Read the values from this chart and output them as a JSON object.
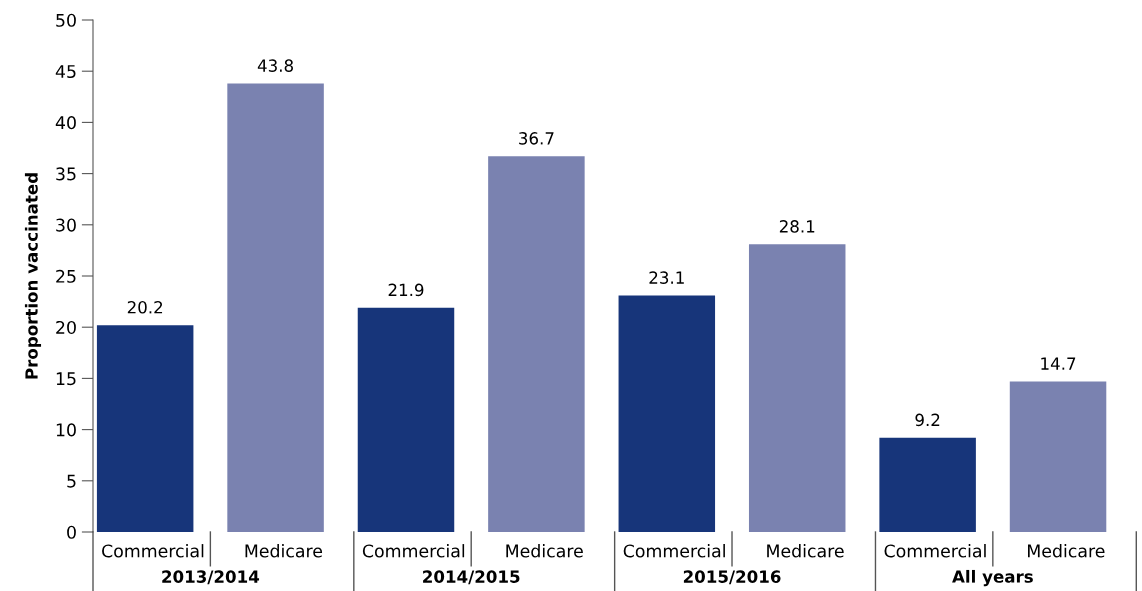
{
  "chart_data": {
    "type": "bar",
    "ylabel": "Proportion vaccinated",
    "categories": [
      "2013/2014",
      "2014/2015",
      "2015/2016",
      "All years"
    ],
    "series": [
      {
        "name": "Commercial",
        "color": "#17357a",
        "values": [
          20.2,
          21.9,
          23.1,
          9.2
        ]
      },
      {
        "name": "Medicare",
        "color": "#7a82b0",
        "values": [
          43.8,
          36.7,
          28.1,
          14.7
        ]
      }
    ],
    "ylim": [
      0,
      50
    ],
    "yticks": [
      0,
      5,
      10,
      15,
      20,
      25,
      30,
      35,
      40,
      45,
      50
    ],
    "data_labels": true,
    "grid": false,
    "legend": false
  }
}
